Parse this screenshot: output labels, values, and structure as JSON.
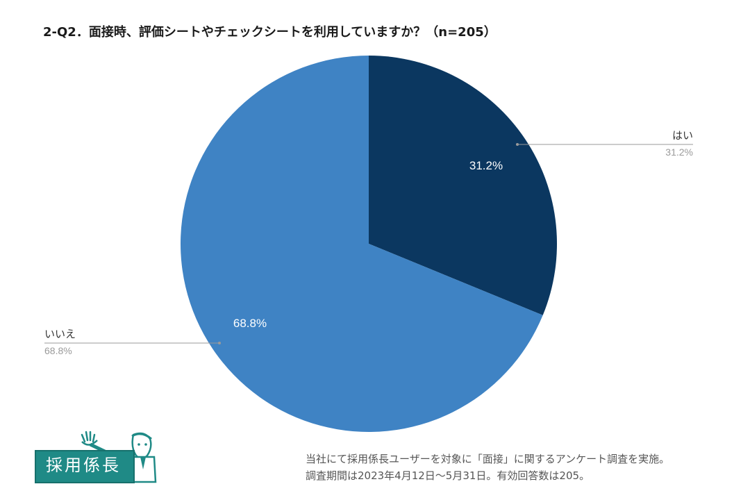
{
  "title": "2-Q2．面接時、評価シートやチェックシートを利用していますか？（n=205）",
  "chart_data": {
    "type": "pie",
    "title": "2-Q2．面接時、評価シートやチェックシートを利用していますか？（n=205）",
    "slices": [
      {
        "label": "はい",
        "value": 31.2,
        "display": "31.2%",
        "color": "#0b3760"
      },
      {
        "label": "いいえ",
        "value": 68.8,
        "display": "68.8%",
        "color": "#3f83c4"
      }
    ],
    "start": "12 o'clock",
    "direction": "clockwise",
    "legend": "callouts"
  },
  "logo": {
    "text": "採用係長",
    "color": "#1f8a86"
  },
  "footnote": {
    "line1": "当社にて採用係長ユーザーを対象に「面接」に関するアンケート調査を実施。",
    "line2": "調査期間は2023年4月12日〜5月31日。有効回答数は205。"
  }
}
